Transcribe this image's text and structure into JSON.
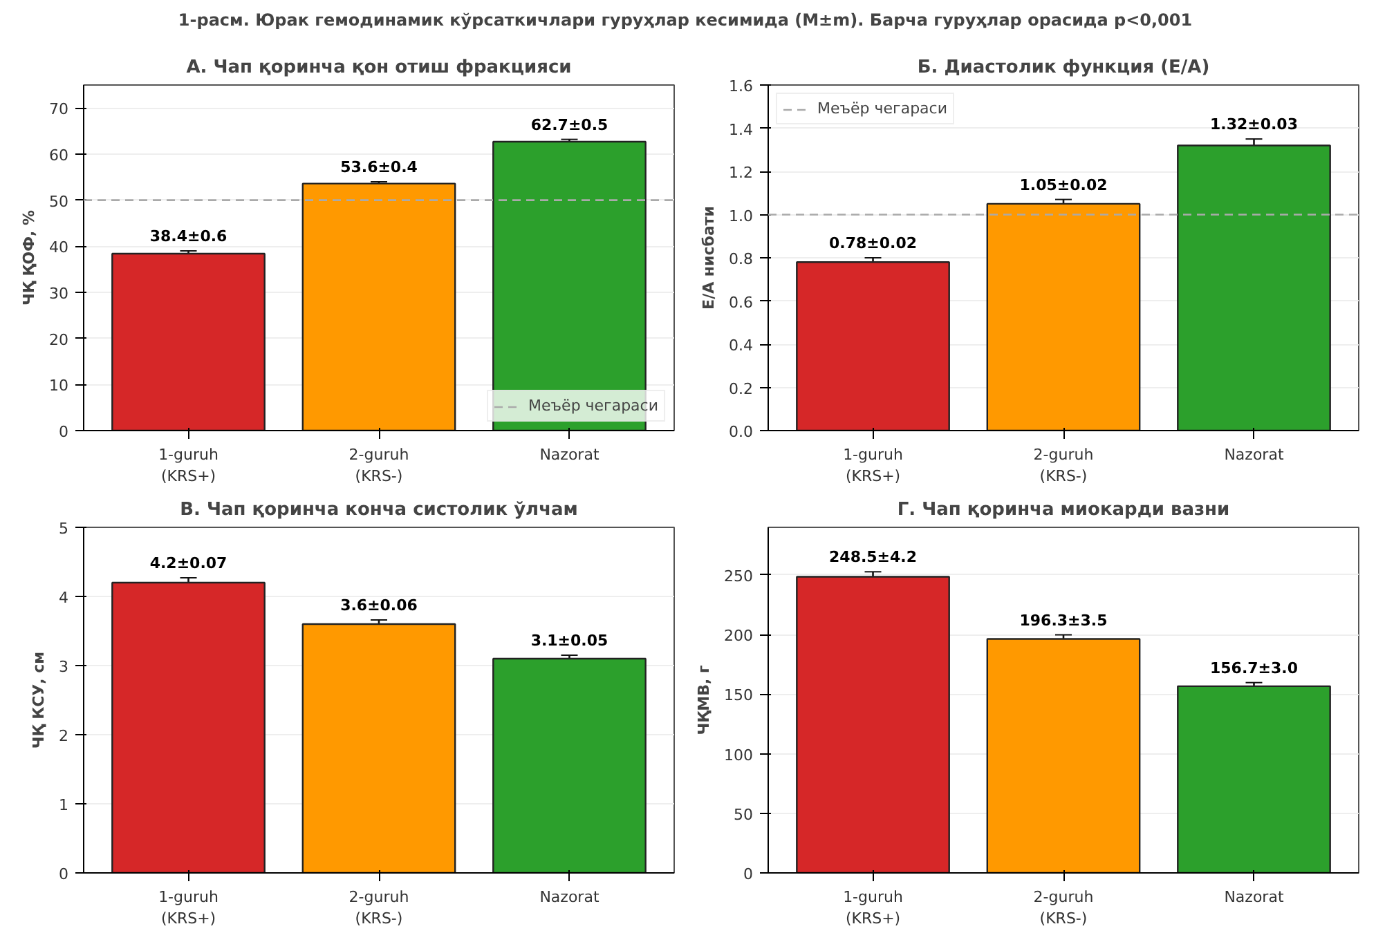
{
  "chart_data": [
    {
      "type": "other",
      "title": "1-расм. Юрак гемодинамик кўрсаткичлари гуруҳлар кесимида (M±m). Барча гуруҳлар орасида p<0,001"
    },
    {
      "type": "bar",
      "title": "А. Чап қоринча қон отиш фракцияси",
      "ylabel": "ЧҚ ҚОФ, %",
      "categories": [
        "1-guruh\n(KRS+)",
        "2-guruh\n(KRS-)",
        "Nazorat"
      ],
      "values": [
        38.4,
        53.6,
        62.7
      ],
      "errors": [
        0.6,
        0.4,
        0.5
      ],
      "value_labels": [
        "38.4±0.6",
        "53.6±0.4",
        "62.7±0.5"
      ],
      "colors": [
        "#d62728",
        "#ff9900",
        "#2ca02c"
      ],
      "ylim": [
        0,
        75
      ],
      "yticks": [
        0,
        10,
        20,
        30,
        40,
        50,
        60,
        70
      ],
      "grid": "y",
      "legend": "bottom right",
      "ref_lines": [
        {
          "axis": "y",
          "value": 50,
          "label": "Меъёр чегараси",
          "color": "#aaaaaa",
          "line_style": "dashed"
        }
      ]
    },
    {
      "type": "bar",
      "title": "Б. Диастолик функция (E/A)",
      "ylabel": "E/A нисбати",
      "categories": [
        "1-guruh\n(KRS+)",
        "2-guruh\n(KRS-)",
        "Nazorat"
      ],
      "values": [
        0.78,
        1.05,
        1.32
      ],
      "errors": [
        0.02,
        0.02,
        0.03
      ],
      "value_labels": [
        "0.78±0.02",
        "1.05±0.02",
        "1.32±0.03"
      ],
      "colors": [
        "#d62728",
        "#ff9900",
        "#2ca02c"
      ],
      "ylim": [
        0,
        1.6
      ],
      "yticks": [
        {
          "value": 0,
          "label": "0.0"
        },
        0.2,
        0.4,
        0.6,
        0.8,
        {
          "value": 1,
          "label": "1.0"
        },
        1.2,
        1.4,
        1.6
      ],
      "grid": "y",
      "legend": "top left",
      "ref_lines": [
        {
          "axis": "y",
          "value": 1.0,
          "label": "Меъёр чегараси",
          "color": "#aaaaaa",
          "line_style": "dashed"
        }
      ]
    },
    {
      "type": "bar",
      "title": "В. Чап қоринча конча систолик ўлчам",
      "ylabel": "ЧҚ КСУ, см",
      "categories": [
        "1-guruh\n(KRS+)",
        "2-guruh\n(KRS-)",
        "Nazorat"
      ],
      "values": [
        4.2,
        3.6,
        3.1
      ],
      "errors": [
        0.07,
        0.06,
        0.05
      ],
      "value_labels": [
        "4.2±0.07",
        "3.6±0.06",
        "3.1±0.05"
      ],
      "colors": [
        "#d62728",
        "#ff9900",
        "#2ca02c"
      ],
      "ylim": [
        0,
        5
      ],
      "yticks": [
        0,
        1,
        2,
        3,
        4,
        5
      ],
      "grid": "y"
    },
    {
      "type": "bar",
      "title": "Г. Чап қоринча миокарди вазни",
      "ylabel": "ЧҚМВ, г",
      "categories": [
        "1-guruh\n(KRS+)",
        "2-guruh\n(KRS-)",
        "Nazorat"
      ],
      "values": [
        248.5,
        196.3,
        156.7
      ],
      "errors": [
        4.2,
        3.5,
        3.0
      ],
      "value_labels": [
        "248.5±4.2",
        "196.3±3.5",
        "156.7±3.0"
      ],
      "colors": [
        "#d62728",
        "#ff9900",
        "#2ca02c"
      ],
      "ylim": [
        0,
        290
      ],
      "yticks": [
        0,
        50,
        100,
        150,
        200,
        250
      ],
      "grid": "y"
    }
  ]
}
